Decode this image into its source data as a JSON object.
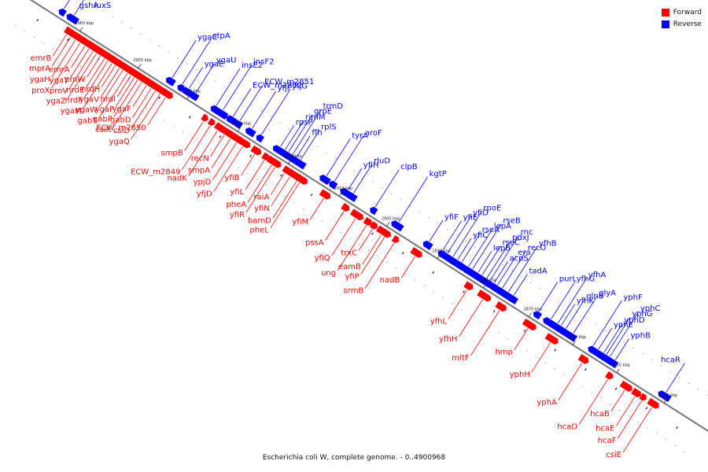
{
  "legend": {
    "forward_label": "Forward",
    "reverse_label": "Reverse",
    "forward_color": "#ff0000",
    "reverse_color": "#0000ff"
  },
  "caption": "Escherichia coli W, complete genome. - 0..4900968",
  "ticks": [
    {
      "label": "2960 kbp",
      "t": 0.072
    },
    {
      "label": "2950 kbp",
      "t": 0.158
    },
    {
      "label": "2940 kbp",
      "t": 0.23
    },
    {
      "label": "2930 kbp",
      "t": 0.305
    },
    {
      "label": "2920 kbp",
      "t": 0.38
    },
    {
      "label": "2910 kbp",
      "t": 0.455
    },
    {
      "label": "2900 kbp",
      "t": 0.525
    },
    {
      "label": "2890 kbp",
      "t": 0.6
    },
    {
      "label": "2880 kbp",
      "t": 0.668
    },
    {
      "label": "2870 kbp",
      "t": 0.735
    },
    {
      "label": "2860 kbp",
      "t": 0.8
    },
    {
      "label": "2850 kbp",
      "t": 0.865
    },
    {
      "label": "2840 kbp",
      "t": 0.935
    }
  ],
  "genes_forward": [
    {
      "name": "emrB",
      "t": 0.06
    },
    {
      "name": "mprA",
      "t": 0.066
    },
    {
      "name": "ygaH",
      "t": 0.073
    },
    {
      "name": "proX",
      "t": 0.08
    },
    {
      "name": "emrA",
      "t": 0.087
    },
    {
      "name": "ygaY",
      "t": 0.093
    },
    {
      "name": "proV",
      "t": 0.099
    },
    {
      "name": "ygaZ",
      "t": 0.104
    },
    {
      "name": "proW",
      "t": 0.11
    },
    {
      "name": "nrdE",
      "t": 0.116
    },
    {
      "name": "nrdF",
      "t": 0.121
    },
    {
      "name": "ygaM",
      "t": 0.127
    },
    {
      "name": "nrdH",
      "t": 0.132
    },
    {
      "name": "ygaV",
      "t": 0.138
    },
    {
      "name": "ygaW",
      "t": 0.143
    },
    {
      "name": "gabT",
      "t": 0.15
    },
    {
      "name": "nrdI",
      "t": 0.155
    },
    {
      "name": "ygaP",
      "t": 0.16
    },
    {
      "name": "gabP",
      "t": 0.165
    },
    {
      "name": "csiR",
      "t": 0.171
    },
    {
      "name": "ygaF",
      "t": 0.178
    },
    {
      "name": "gabD",
      "t": 0.185
    },
    {
      "name": "csiD",
      "t": 0.191
    },
    {
      "name": "ygaQ",
      "t": 0.198
    },
    {
      "name": "ECW_m2850",
      "t": 0.206
    },
    {
      "name": "smpB",
      "t": 0.262
    },
    {
      "name": "ECW_m2849",
      "t": 0.272
    },
    {
      "name": "nadK",
      "t": 0.283
    },
    {
      "name": "recN",
      "t": 0.293
    },
    {
      "name": "smpA",
      "t": 0.302
    },
    {
      "name": "ypjD",
      "t": 0.311
    },
    {
      "name": "yfjD",
      "t": 0.32
    },
    {
      "name": "yfiB",
      "t": 0.338
    },
    {
      "name": "yfiL",
      "t": 0.352
    },
    {
      "name": "pheA",
      "t": 0.363
    },
    {
      "name": "yfiR",
      "t": 0.368
    },
    {
      "name": "raiA",
      "t": 0.382
    },
    {
      "name": "yfiN",
      "t": 0.39
    },
    {
      "name": "bamD",
      "t": 0.4
    },
    {
      "name": "pheL",
      "t": 0.404
    },
    {
      "name": "yfiM",
      "t": 0.44
    },
    {
      "name": "pssA",
      "t": 0.47
    },
    {
      "name": "yfiQ",
      "t": 0.487
    },
    {
      "name": "ung",
      "t": 0.503
    },
    {
      "name": "trxC",
      "t": 0.512
    },
    {
      "name": "eamB",
      "t": 0.525
    },
    {
      "name": "yfiP",
      "t": 0.53
    },
    {
      "name": "srmB",
      "t": 0.544
    },
    {
      "name": "nadB",
      "t": 0.575
    },
    {
      "name": "yfhL",
      "t": 0.652
    },
    {
      "name": "yfhH",
      "t": 0.675
    },
    {
      "name": "mltF",
      "t": 0.7
    },
    {
      "name": "hmp",
      "t": 0.742
    },
    {
      "name": "yphH",
      "t": 0.775
    },
    {
      "name": "yphA",
      "t": 0.822
    },
    {
      "name": "hcaD",
      "t": 0.86
    },
    {
      "name": "hcaB",
      "t": 0.885
    },
    {
      "name": "hcaE",
      "t": 0.9
    },
    {
      "name": "hcaF",
      "t": 0.91
    },
    {
      "name": "csiE",
      "t": 0.925
    }
  ],
  "genes_reverse": [
    {
      "name": "luxS",
      "t": 0.055
    },
    {
      "name": "gshA",
      "t": 0.04
    },
    {
      "name": "ygaC",
      "t": 0.2
    },
    {
      "name": "stpA",
      "t": 0.215
    },
    {
      "name": "ygaE",
      "t": 0.225
    },
    {
      "name": "ygaU",
      "t": 0.235
    },
    {
      "name": "insE2",
      "t": 0.265
    },
    {
      "name": "insF2",
      "t": 0.275
    },
    {
      "name": "ECW_m2852",
      "t": 0.29
    },
    {
      "name": "ECW_m2851",
      "t": 0.3
    },
    {
      "name": "yfjF",
      "t": 0.318
    },
    {
      "name": "yfjG",
      "t": 0.332
    },
    {
      "name": "rpsP",
      "t": 0.36
    },
    {
      "name": "rimM",
      "t": 0.367
    },
    {
      "name": "grpE",
      "t": 0.372
    },
    {
      "name": "trmD",
      "t": 0.378
    },
    {
      "name": "ffh",
      "t": 0.384
    },
    {
      "name": "rplS",
      "t": 0.39
    },
    {
      "name": "tyrA",
      "t": 0.428
    },
    {
      "name": "aroF",
      "t": 0.44
    },
    {
      "name": "yfiH",
      "t": 0.46
    },
    {
      "name": "rluD",
      "t": 0.468
    },
    {
      "name": "clpB",
      "t": 0.5
    },
    {
      "name": "kgtP",
      "t": 0.535
    },
    {
      "name": "yfiF",
      "t": 0.58
    },
    {
      "name": "yfiE",
      "t": 0.6
    },
    {
      "name": "yfiD",
      "t": 0.607
    },
    {
      "name": "rpoE",
      "t": 0.615
    },
    {
      "name": "yfiC",
      "t": 0.622
    },
    {
      "name": "rseA",
      "t": 0.628
    },
    {
      "name": "lepA",
      "t": 0.638
    },
    {
      "name": "rseB",
      "t": 0.644
    },
    {
      "name": "lepB",
      "t": 0.652
    },
    {
      "name": "rseC",
      "t": 0.658
    },
    {
      "name": "pdxJ",
      "t": 0.665
    },
    {
      "name": "rnc",
      "t": 0.67
    },
    {
      "name": "acpS",
      "t": 0.676
    },
    {
      "name": "era",
      "t": 0.681
    },
    {
      "name": "recO",
      "t": 0.688
    },
    {
      "name": "yfhB",
      "t": 0.697
    },
    {
      "name": "tadA",
      "t": 0.705
    },
    {
      "name": "purL",
      "t": 0.742
    },
    {
      "name": "yfhG",
      "t": 0.76
    },
    {
      "name": "yfhA",
      "t": 0.77
    },
    {
      "name": "yfhK",
      "t": 0.775
    },
    {
      "name": "glnB",
      "t": 0.782
    },
    {
      "name": "glyA",
      "t": 0.793
    },
    {
      "name": "yphF",
      "t": 0.822
    },
    {
      "name": "yphE",
      "t": 0.83
    },
    {
      "name": "yphD",
      "t": 0.838
    },
    {
      "name": "yphG",
      "t": 0.842
    },
    {
      "name": "yphC",
      "t": 0.847
    },
    {
      "name": "yphB",
      "t": 0.855
    },
    {
      "name": "hcaR",
      "t": 0.93
    }
  ]
}
